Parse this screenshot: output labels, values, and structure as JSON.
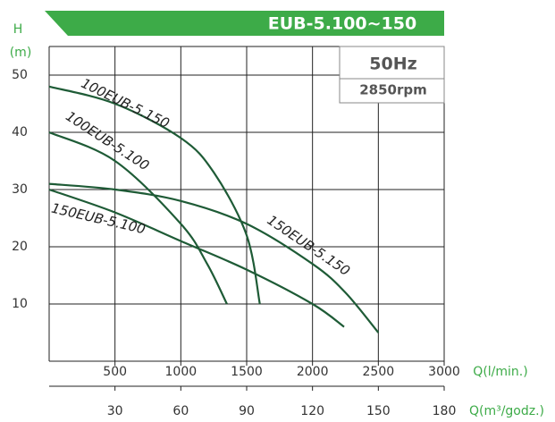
{
  "chart_data": {
    "type": "line",
    "title": "EUB-5.100~150",
    "frequency": "50Hz",
    "speed": "2850rpm",
    "ylabel": [
      "H",
      "(m)"
    ],
    "xlabel": "Q(l/min.)",
    "x2label": "Q(m³/godz.)",
    "xlim": [
      0,
      3000
    ],
    "xticks": [
      500,
      1000,
      1500,
      2000,
      2500,
      3000
    ],
    "x2lim": [
      0,
      180
    ],
    "x2ticks": [
      30,
      60,
      90,
      120,
      150,
      180
    ],
    "ylim": [
      0,
      55
    ],
    "yticks": [
      10,
      20,
      30,
      40,
      50
    ],
    "grid": true,
    "series": [
      {
        "name": "100EUB-5.150",
        "color": "#1e5b36",
        "x": [
          0,
          500,
          1000,
          1250,
          1500,
          1600
        ],
        "values": [
          48,
          45,
          39,
          33,
          22,
          10
        ]
      },
      {
        "name": "100EUB-5.100",
        "color": "#1e5b36",
        "x": [
          0,
          500,
          1000,
          1200,
          1350
        ],
        "values": [
          40,
          35,
          24,
          17,
          10
        ]
      },
      {
        "name": "150EUB-5.150",
        "color": "#1e5b36",
        "x": [
          0,
          500,
          1000,
          1500,
          2000,
          2250,
          2500
        ],
        "values": [
          31,
          30,
          28,
          24,
          17,
          12,
          5
        ]
      },
      {
        "name": "150EUB-5.100",
        "color": "#1e5b36",
        "x": [
          0,
          500,
          1000,
          1500,
          2000,
          2240
        ],
        "values": [
          30,
          26,
          21,
          16,
          10,
          6
        ]
      }
    ]
  }
}
